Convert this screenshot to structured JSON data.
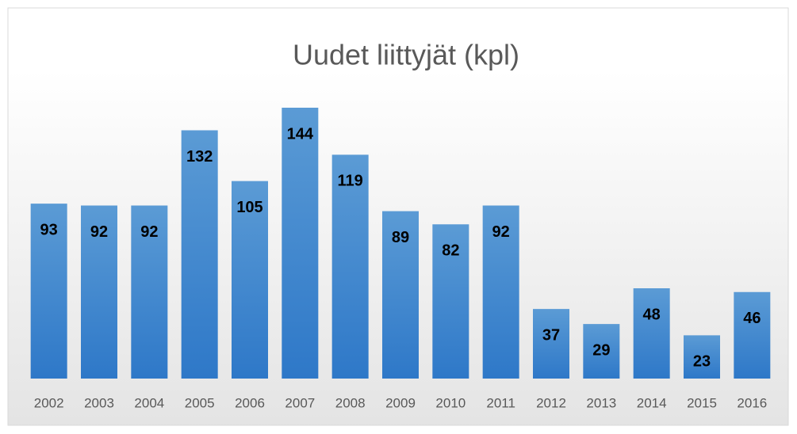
{
  "chart_data": {
    "type": "bar",
    "title": "Uudet liittyjät (kpl)",
    "categories": [
      "2002",
      "2003",
      "2004",
      "2005",
      "2006",
      "2007",
      "2008",
      "2009",
      "2010",
      "2011",
      "2012",
      "2013",
      "2014",
      "2015",
      "2016"
    ],
    "values": [
      93,
      92,
      92,
      132,
      105,
      144,
      119,
      89,
      82,
      92,
      37,
      29,
      48,
      23,
      46
    ],
    "color": "#5b9bd5",
    "ylim": [
      0,
      160
    ]
  }
}
